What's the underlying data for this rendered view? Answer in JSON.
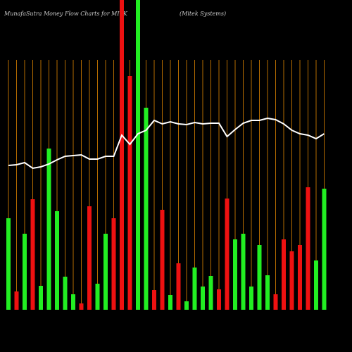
{
  "chart_data": {
    "type": "bar",
    "title": "MunafaSutra  Money Flow  Charts for MITK",
    "subtitle": "(Mitek Systems)",
    "categories": [
      null,
      null,
      null,
      null,
      null,
      null,
      null,
      null,
      null,
      null,
      null,
      null,
      null,
      null,
      null,
      null,
      null,
      null,
      null,
      null,
      null,
      null,
      null,
      null,
      null,
      null,
      null,
      null,
      null,
      null,
      null,
      null,
      null,
      null,
      null,
      null,
      null,
      null,
      null,
      null
    ],
    "series": [
      {
        "name": "money-flow",
        "values": [
          130,
          26,
          108,
          157,
          34,
          229,
          140,
          47,
          22,
          9,
          147,
          37,
          108,
          130,
          440,
          332,
          440,
          287,
          28,
          142,
          21,
          66,
          12,
          60,
          33,
          48,
          29,
          158,
          100,
          108,
          33,
          92,
          49,
          22,
          100,
          83,
          92,
          174,
          70,
          172
        ],
        "colors": [
          "#22ee22",
          "#ee1111",
          "#22ee22",
          "#ee1111",
          "#22ee22",
          "#22ee22",
          "#22ee22",
          "#22ee22",
          "#22ee22",
          "#ee1111",
          "#ee1111",
          "#22ee22",
          "#22ee22",
          "#ee1111",
          "#ee1111",
          "#ee1111",
          "#22ee22",
          "#22ee22",
          "#ee1111",
          "#ee1111",
          "#22ee22",
          "#ee1111",
          "#22ee22",
          "#22ee22",
          "#22ee22",
          "#22ee22",
          "#ee1111",
          "#ee1111",
          "#22ee22",
          "#22ee22",
          "#22ee22",
          "#22ee22",
          "#22ee22",
          "#ee1111",
          "#ee1111",
          "#ee1111",
          "#ee1111",
          "#ee1111",
          "#22ee22",
          "#22ee22"
        ]
      },
      {
        "name": "price",
        "type": "line",
        "color": "#ffffff",
        "values": [
          205,
          206,
          209,
          201,
          203,
          207,
          213,
          218,
          219,
          220,
          214,
          214,
          218,
          218,
          248,
          235,
          250,
          255,
          269,
          264,
          267,
          264,
          263,
          266,
          264,
          265,
          265,
          246,
          256,
          265,
          269,
          269,
          272,
          270,
          264,
          255,
          250,
          248,
          243,
          250
        ]
      }
    ],
    "ylim": [
      0,
      440
    ],
    "grid_color": "#b36b00"
  }
}
